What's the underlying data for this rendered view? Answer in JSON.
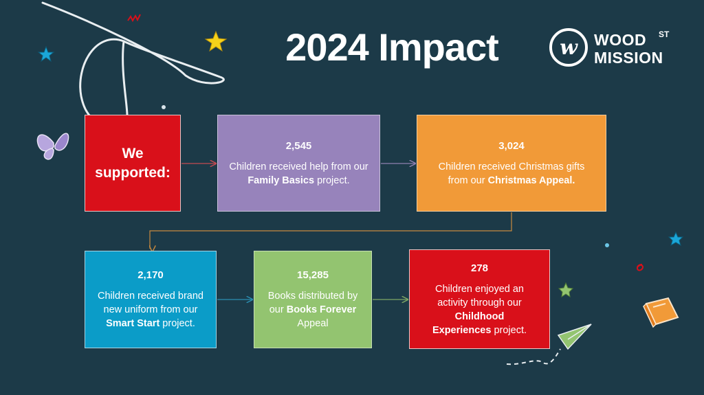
{
  "title": "2024 Impact",
  "logo": {
    "line1": "WOOD",
    "superscript": "ST",
    "line2": "MISSION",
    "mark_letter": "w"
  },
  "lead": {
    "line1": "We",
    "line2": "supported:"
  },
  "stats": [
    {
      "value": "2,545",
      "text_before": "Children received help from our ",
      "bold": "Family Basics",
      "text_after": " project."
    },
    {
      "value": "3,024",
      "text_before": "Children received Christmas gifts from our ",
      "bold": "Christmas Appeal.",
      "text_after": ""
    },
    {
      "value": "2,170",
      "text_before": "Children received brand new uniform from our ",
      "bold": "Smart Start",
      "text_after": " project."
    },
    {
      "value": "15,285",
      "text_before": "Books distributed by our ",
      "bold": "Books Forever",
      "text_after": " Appeal"
    },
    {
      "value": "278",
      "text_before": "Children enjoyed an activity through our ",
      "bold": "Childhood Experiences",
      "text_after": " project."
    }
  ],
  "colors": {
    "background": "#1c3a48",
    "red": "#d9101a",
    "purple": "#9783bb",
    "orange": "#f19a38",
    "blue": "#0b9cc8",
    "green": "#93c470"
  },
  "decorations": [
    "star-icon",
    "butterfly-icon",
    "book-icon",
    "paper-plane-icon",
    "squiggle-icon",
    "swirl-line"
  ]
}
